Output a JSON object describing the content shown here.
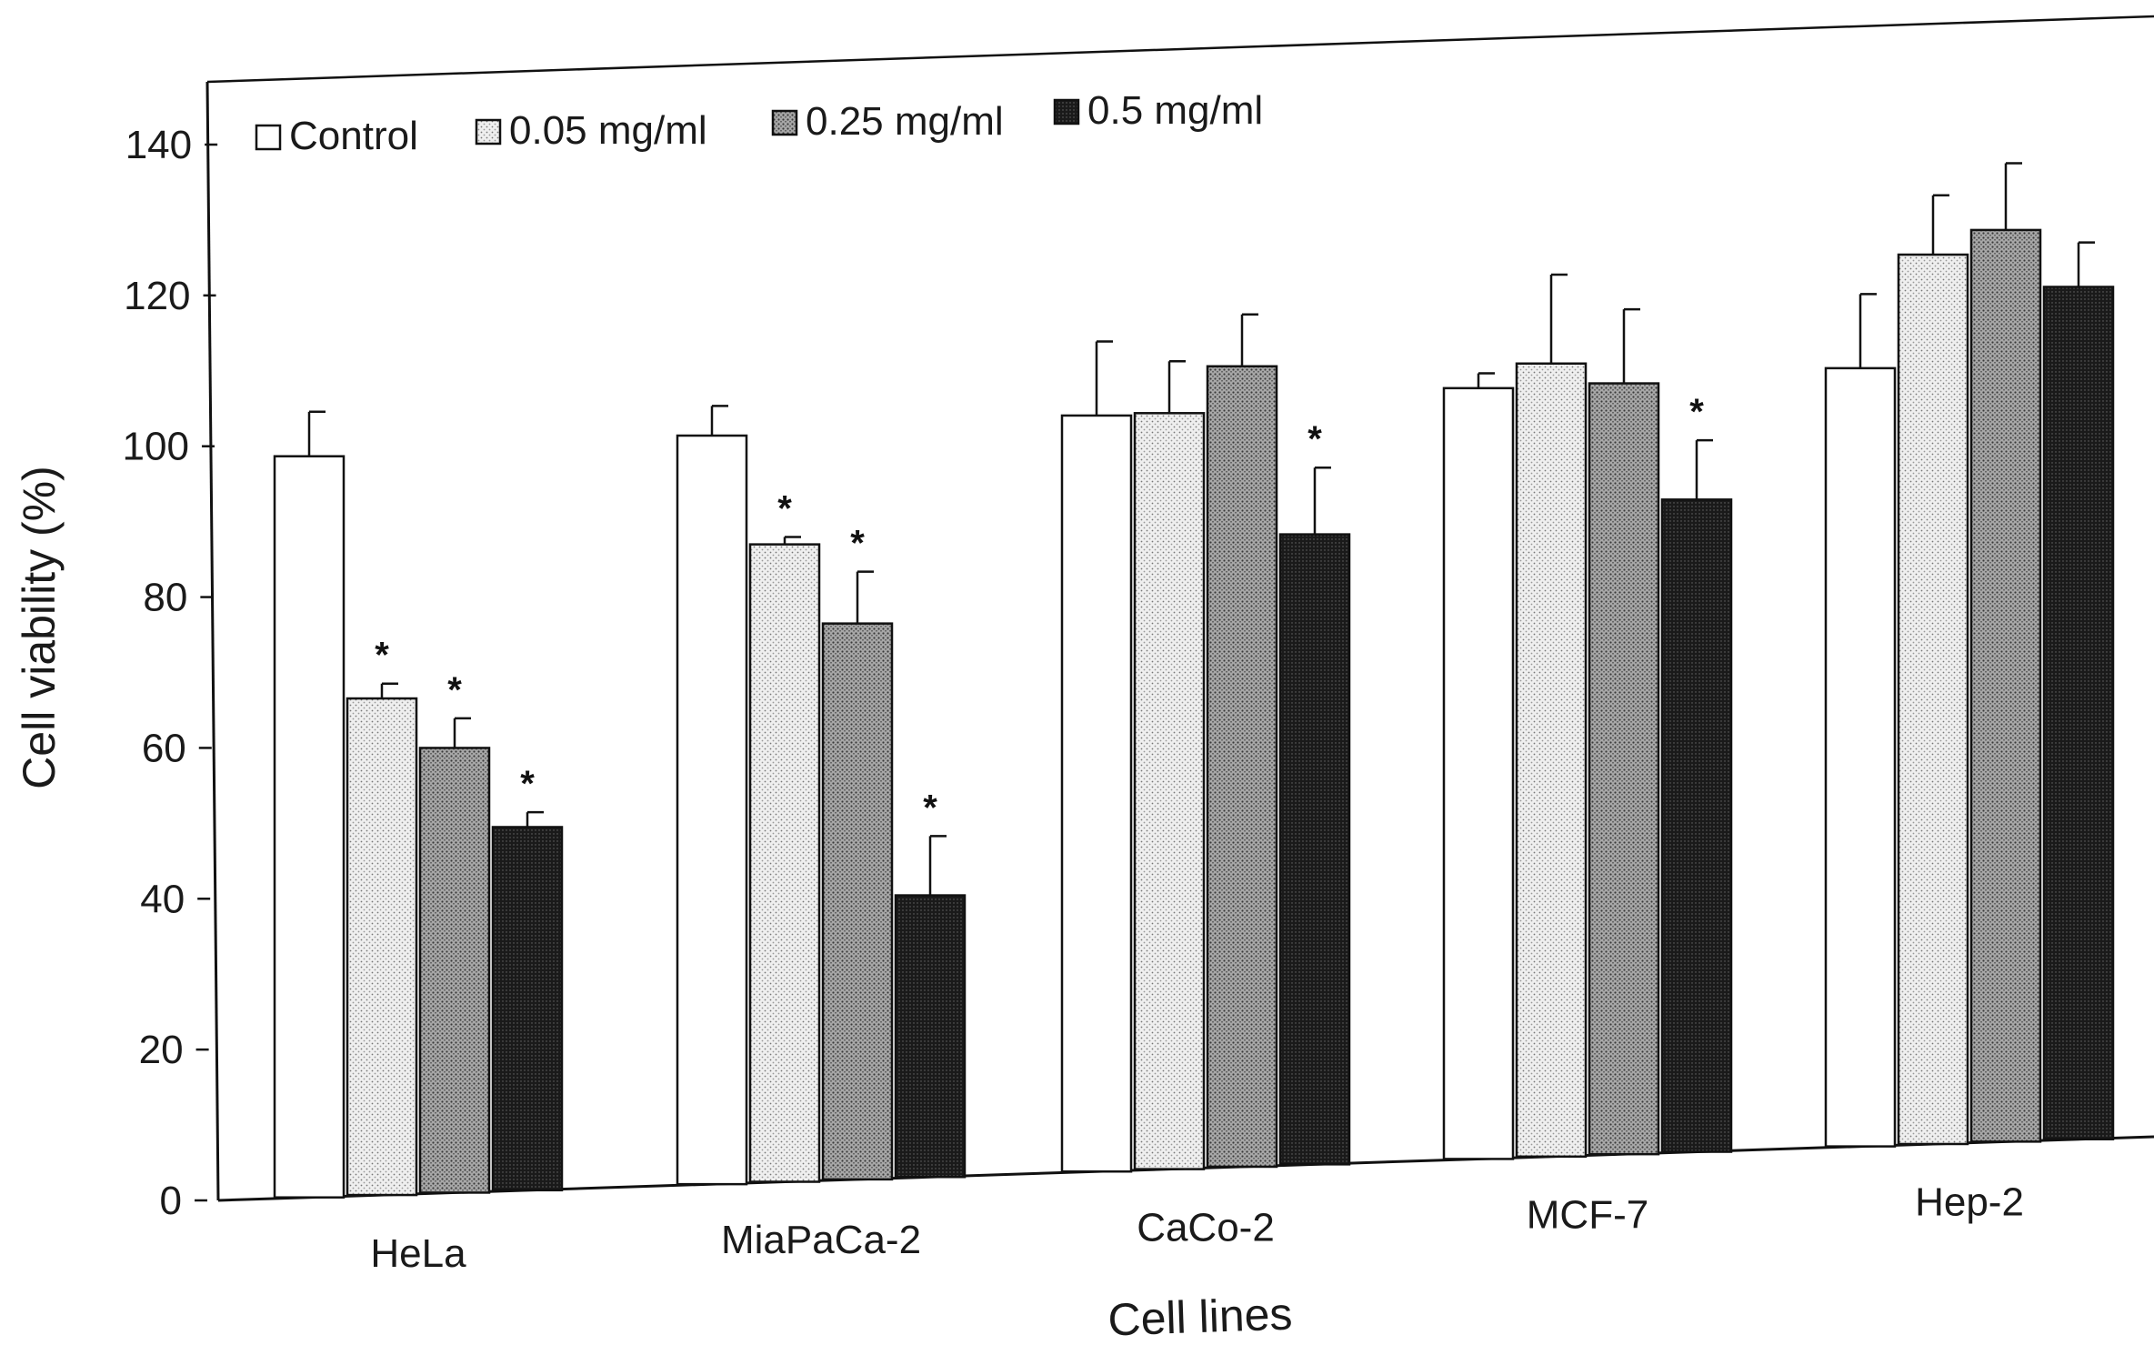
{
  "chart_data": {
    "type": "bar",
    "title": "",
    "xlabel": "Cell lines",
    "ylabel": "Cell viability (%)",
    "ylim": [
      0,
      140
    ],
    "yticks": [
      0,
      20,
      40,
      60,
      80,
      100,
      120,
      140
    ],
    "grid": false,
    "legend_position": "top-left",
    "categories": [
      "HeLa",
      "MiaPaCa-2",
      "CaCo-2",
      "MCF-7",
      "Hep-2"
    ],
    "series": [
      {
        "name": "Control",
        "values": [
          100,
          101,
          102,
          104,
          105
        ],
        "errors": [
          6,
          4,
          10,
          2,
          10
        ],
        "significant": [
          false,
          false,
          false,
          false,
          false
        ],
        "fill": "#ffffff"
      },
      {
        "name": "0.05 mg/ml",
        "values": [
          67,
          86,
          102,
          107,
          120
        ],
        "errors": [
          2,
          1,
          7,
          12,
          8
        ],
        "significant": [
          true,
          true,
          false,
          false,
          false
        ],
        "fill": "#dcdcdc"
      },
      {
        "name": "0.25 mg/ml",
        "values": [
          60,
          75,
          108,
          104,
          123
        ],
        "errors": [
          4,
          7,
          7,
          10,
          9
        ],
        "significant": [
          true,
          true,
          false,
          false,
          false
        ],
        "fill": "#8a8a8a"
      },
      {
        "name": "0.5 mg/ml",
        "values": [
          49,
          38,
          85,
          88,
          115
        ],
        "errors": [
          2,
          8,
          9,
          8,
          6
        ],
        "significant": [
          true,
          true,
          true,
          true,
          false
        ],
        "fill": "#1c1c1c"
      }
    ],
    "significance_marker": "*"
  }
}
